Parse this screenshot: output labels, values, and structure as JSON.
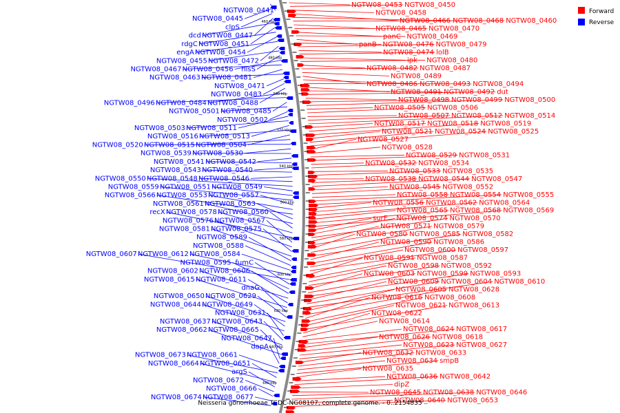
{
  "title": "Neisseria gonorrhoeae TCDC-NG08107, complete genome. - 0..2154835",
  "legend": [
    {
      "label": "Forward",
      "color": "#ff0000"
    },
    {
      "label": "Reverse",
      "color": "#0000ff"
    }
  ],
  "kbp_labels": [
    "460 kbp",
    "480 kbp",
    "500 kbp",
    "520 kbp",
    "540 kbp",
    "560 kbp",
    "580 kbp",
    "600 kbp",
    "620 kbp",
    "640 kbp",
    "660 kbp"
  ],
  "reverse_labels": [
    "NGTW08_0441",
    "NGTW08_0445",
    "clpS",
    "NGTW08_0447",
    "dcd",
    "NGTW08_0451",
    "rdgC",
    "NGTW08_0454",
    "engA",
    "NGTW08_0472",
    "NGTW08_0455",
    "hisS",
    "NGTW08_0456",
    "NGTW08_0467",
    "NGTW08_0481",
    "NGTW08_0463",
    "NGTW08_0471",
    "NGTW08_0483",
    "NGTW08_0488",
    "NGTW08_0484",
    "NGTW08_0496",
    "NGTW08_0485",
    "NGTW08_0501",
    "NGTW08_0502",
    "NGTW08_0511",
    "NGTW08_0503",
    "NGTW08_0513",
    "NGTW08_0516",
    "NGTW08_0504",
    "NGTW08_0515",
    "NGTW08_0520",
    "NGTW08_0530",
    "NGTW08_0539",
    "NGTW08_0542",
    "NGTW08_0541",
    "NGTW08_0540",
    "NGTW08_0543",
    "NGTW08_0546",
    "NGTW08_0548",
    "NGTW08_0550",
    "NGTW08_0549",
    "NGTW08_0551",
    "NGTW08_0559",
    "NGTW08_0557",
    "NGTW08_0553",
    "NGTW08_0566",
    "NGTW08_0563",
    "NGTW08_0561",
    "NGTW08_0560",
    "NGTW08_0578",
    "recX",
    "NGTW08_0567",
    "NGTW08_0576",
    "NGTW08_0575",
    "NGTW08_0581",
    "NGTW08_0589",
    "NGTW08_0588",
    "NGTW08_0584",
    "NGTW08_0612",
    "NGTW08_0607",
    "fumC",
    "NGTW08_0595",
    "NGTW08_0606",
    "NGTW08_0602",
    "NGTW08_0611",
    "NGTW08_0615",
    "dnaG",
    "NGTW08_0629",
    "NGTW08_0650",
    "NGTW08_0649",
    "NGTW08_0644",
    "NGTW08_0631",
    "NGTW08_0643",
    "NGTW08_0637",
    "NGTW08_0665",
    "NGTW08_0662",
    "NGTW08_0647",
    "dapA",
    "NGTW08_0661",
    "NGTW08_0673",
    "NGTW08_0651",
    "NGTW08_0664",
    "argS",
    "NGTW08_0672",
    "NGTW08_0666",
    "NGTW08_0677",
    "NGTW08_0674"
  ],
  "forward_labels": [
    "NGTW08_0453",
    "NGTW08_0450",
    "NGTW08_0458",
    "NGTW08_0466",
    "NGTW08_0468",
    "NGTW08_0460",
    "NGTW08_0465",
    "NGTW08_0470",
    "panC",
    "NGTW08_0469",
    "panB",
    "NGTW08_0476",
    "NGTW08_0479",
    "NGTW08_0474",
    "lolB",
    "ipk",
    "NGTW08_0480",
    "NGTW08_0482",
    "NGTW08_0487",
    "NGTW08_0489",
    "NGTW08_0486",
    "NGTW08_0493",
    "NGTW08_0494",
    "NGTW08_0491",
    "NGTW08_0492",
    "dut",
    "NGTW08_0498",
    "NGTW08_0499",
    "NGTW08_0500",
    "NGTW08_0505",
    "NGTW08_0506",
    "NGTW08_0507",
    "NGTW08_0512",
    "NGTW08_0514",
    "NGTW08_0517",
    "NGTW08_0518",
    "NGTW08_0519",
    "NGTW08_0521",
    "NGTW08_0524",
    "NGTW08_0525",
    "NGTW08_0527",
    "NGTW08_0528",
    "NGTW08_0529",
    "NGTW08_0531",
    "NGTW08_0532",
    "NGTW08_0534",
    "NGTW08_0533",
    "NGTW08_0535",
    "NGTW08_0538",
    "NGTW08_0544",
    "NGTW08_0547",
    "NGTW08_0545",
    "NGTW08_0552",
    "NGTW08_0558",
    "NGTW08_0554",
    "NGTW08_0555",
    "NGTW08_0556",
    "NGTW08_0562",
    "NGTW08_0564",
    "NGTW08_0565",
    "NGTW08_0568",
    "NGTW08_0569",
    "surE",
    "NGTW08_0574",
    "NGTW08_0570",
    "NGTW08_0571",
    "NGTW08_0579",
    "NGTW08_0580",
    "NGTW08_0585",
    "NGTW08_0582",
    "NGTW08_0590",
    "NGTW08_0586",
    "NGTW08_0600",
    "NGTW08_0597",
    "NGTW08_0591",
    "NGTW08_0587",
    "NGTW08_0598",
    "NGTW08_0592",
    "NGTW08_0603",
    "NGTW08_0599",
    "NGTW08_0593",
    "NGTW08_0609",
    "NGTW08_0604",
    "NGTW08_0610",
    "NGTW08_0605",
    "NGTW08_0628",
    "NGTW08_0616",
    "NGTW08_0608",
    "NGTW08_0621",
    "NGTW08_0613",
    "NGTW08_0622",
    "NGTW08_0614",
    "NGTW08_0624",
    "NGTW08_0617",
    "NGTW08_0626",
    "NGTW08_0618",
    "NGTW08_0623",
    "NGTW08_0627",
    "NGTW08_0632",
    "NGTW08_0633",
    "NGTW08_0634",
    "smpB",
    "NGTW08_0635",
    "NGTW08_0636",
    "NGTW08_0642",
    "dipZ",
    "NGTW08_0645",
    "NGTW08_0638",
    "NGTW08_0646",
    "NGTW08_0640",
    "NGTW08_0653"
  ]
}
